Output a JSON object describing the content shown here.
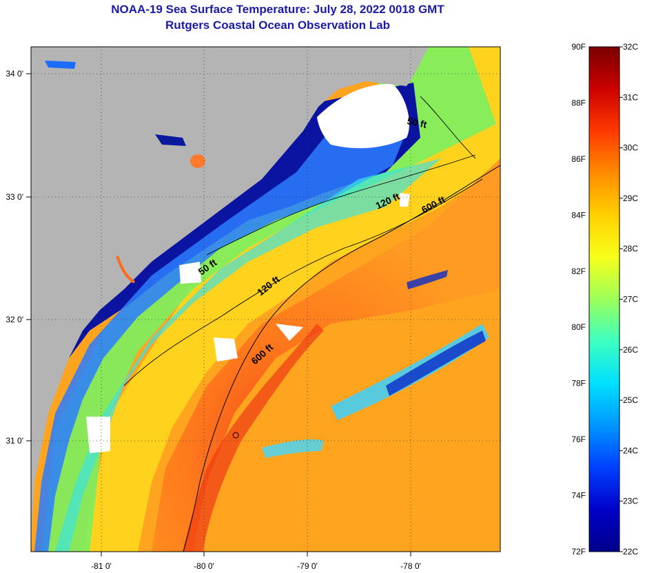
{
  "title": {
    "line1": "NOAA-19 Sea Surface Temperature:  July 28, 2022 0018 GMT",
    "line2": "Rutgers Coastal Ocean Observation Lab"
  },
  "map": {
    "x_ticks": [
      "-81 0'",
      "-80 0'",
      "-79 0'",
      "-78 0'"
    ],
    "y_ticks": [
      "34 0'",
      "33 0'",
      "32 0'",
      "31 0'"
    ],
    "contours": [
      {
        "label": "50 ft"
      },
      {
        "label": "120 ft"
      },
      {
        "label": "600 ft"
      },
      {
        "label": "50 ft"
      },
      {
        "label": "120 ft"
      },
      {
        "label": "600 ft"
      }
    ],
    "colors": {
      "land": "#b4b4b4",
      "cloud": "#ffffff",
      "warm": "#ff7a1c",
      "cold": "#0a14a0"
    }
  },
  "colorbar": {
    "fahrenheit": [
      "90F",
      "88F",
      "86F",
      "84F",
      "82F",
      "80F",
      "78F",
      "76F",
      "74F",
      "72F"
    ],
    "celsius": [
      "32C",
      "31C",
      "30C",
      "29C",
      "28C",
      "27C",
      "26C",
      "25C",
      "24C",
      "23C",
      "22C"
    ],
    "gradient_stops": [
      "#7a0000",
      "#cc0000",
      "#ff3a00",
      "#ff8c00",
      "#ffd000",
      "#f7ff1a",
      "#9cff5a",
      "#3dffc0",
      "#00e0ff",
      "#0096ff",
      "#0040ff",
      "#0000c8",
      "#00008c"
    ]
  }
}
